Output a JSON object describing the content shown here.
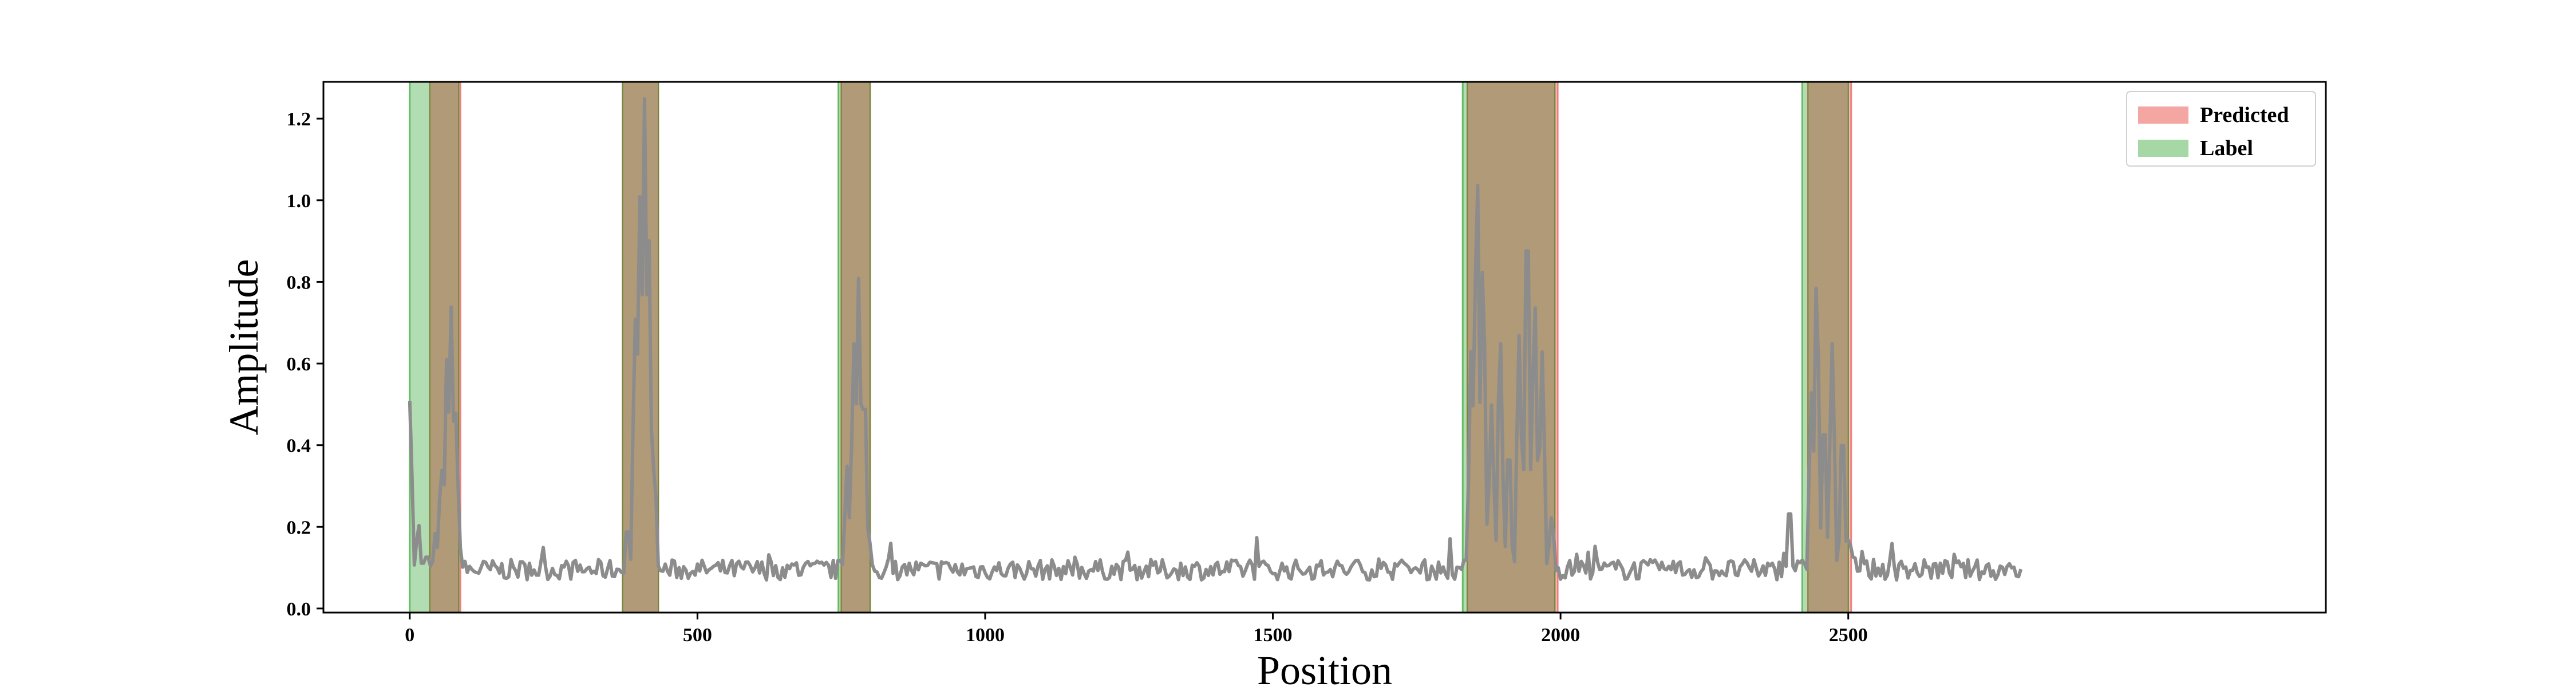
{
  "chart_data": {
    "type": "line",
    "xlabel": "Position",
    "ylabel": "Amplitude",
    "xlim": [
      -150,
      3330
    ],
    "ylim": [
      -0.01,
      1.29
    ],
    "xticks": [
      0,
      500,
      1000,
      1500,
      2000,
      2500
    ],
    "yticks": [
      0.0,
      0.2,
      0.4,
      0.6,
      0.8,
      1.0,
      1.2
    ],
    "grid": false,
    "legend_placement": "top-right",
    "legend": [
      {
        "label": "Predicted",
        "color": "#f4a6a3"
      },
      {
        "label": "Label",
        "color": "#a6d8a6"
      }
    ],
    "colors": {
      "predicted": "#f08080",
      "label": "#66bb66",
      "signal": "#8c8c8c",
      "overlap": "#b09a78"
    },
    "predicted_regions": [
      [
        35,
        88
      ],
      [
        370,
        432
      ],
      [
        750,
        800
      ],
      [
        1838,
        1995
      ],
      [
        2430,
        2505
      ]
    ],
    "label_regions": [
      [
        0,
        85
      ],
      [
        370,
        432
      ],
      [
        745,
        800
      ],
      [
        1830,
        1990
      ],
      [
        2420,
        2500
      ]
    ],
    "signal": {
      "x_start": 0,
      "x_end": 2800,
      "baseline": 0.095,
      "baseline_noise": 0.025,
      "peaks": [
        {
          "x": 0,
          "y": 0.48
        },
        {
          "x": 15,
          "y": 0.18
        },
        {
          "x": 30,
          "y": 0.11
        },
        {
          "x": 45,
          "y": 0.16
        },
        {
          "x": 55,
          "y": 0.32
        },
        {
          "x": 65,
          "y": 0.6
        },
        {
          "x": 72,
          "y": 0.71
        },
        {
          "x": 80,
          "y": 0.45
        },
        {
          "x": 88,
          "y": 0.12
        },
        {
          "x": 378,
          "y": 0.18
        },
        {
          "x": 392,
          "y": 0.68
        },
        {
          "x": 400,
          "y": 0.98
        },
        {
          "x": 408,
          "y": 1.22
        },
        {
          "x": 415,
          "y": 0.9
        },
        {
          "x": 425,
          "y": 0.32
        },
        {
          "x": 760,
          "y": 0.32
        },
        {
          "x": 772,
          "y": 0.62
        },
        {
          "x": 780,
          "y": 0.78
        },
        {
          "x": 790,
          "y": 0.52
        },
        {
          "x": 800,
          "y": 0.13
        },
        {
          "x": 1845,
          "y": 0.62
        },
        {
          "x": 1855,
          "y": 1.04
        },
        {
          "x": 1865,
          "y": 0.82
        },
        {
          "x": 1880,
          "y": 0.47
        },
        {
          "x": 1895,
          "y": 0.64
        },
        {
          "x": 1910,
          "y": 0.38
        },
        {
          "x": 1928,
          "y": 0.64
        },
        {
          "x": 1942,
          "y": 0.96
        },
        {
          "x": 1955,
          "y": 0.73
        },
        {
          "x": 1968,
          "y": 0.6
        },
        {
          "x": 1985,
          "y": 0.2
        },
        {
          "x": 2398,
          "y": 0.23
        },
        {
          "x": 2436,
          "y": 0.5
        },
        {
          "x": 2445,
          "y": 0.78
        },
        {
          "x": 2458,
          "y": 0.45
        },
        {
          "x": 2472,
          "y": 0.62
        },
        {
          "x": 2490,
          "y": 0.42
        },
        {
          "x": 2505,
          "y": 0.13
        }
      ]
    }
  }
}
